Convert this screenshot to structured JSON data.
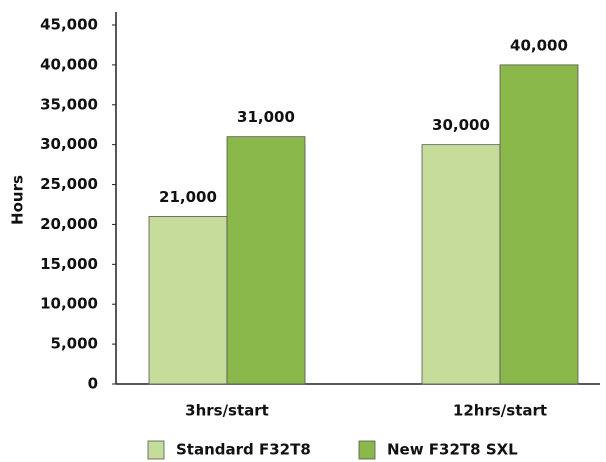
{
  "chart_data": {
    "type": "bar",
    "y_axis_label": "Hours",
    "categories": [
      "3hrs/start",
      "12hrs/start"
    ],
    "series": [
      {
        "name": "Standard F32T8",
        "color": "#c5dc9b",
        "values": [
          21000,
          30000
        ],
        "value_labels": [
          "21,000",
          "30,000"
        ]
      },
      {
        "name": "New F32T8 SXL",
        "color": "#8ab84a",
        "values": [
          31000,
          40000
        ],
        "value_labels": [
          "31,000",
          "40,000"
        ]
      }
    ],
    "ylim": [
      0,
      45000
    ],
    "yticks": [
      0,
      {
        "value": 5000,
        "label": "5,000"
      },
      {
        "value": 10000,
        "label": "10,000"
      },
      {
        "value": 15000,
        "label": "15,000"
      },
      {
        "value": 20000,
        "label": "20,000"
      },
      {
        "value": 25000,
        "label": "25,000"
      },
      {
        "value": 30000,
        "label": "30,000"
      },
      {
        "value": 35000,
        "label": "35,000"
      },
      {
        "value": 40000,
        "label": "40,000"
      },
      {
        "value": 45000,
        "label": "45,000"
      }
    ],
    "grid": false,
    "legend": "bottom"
  }
}
